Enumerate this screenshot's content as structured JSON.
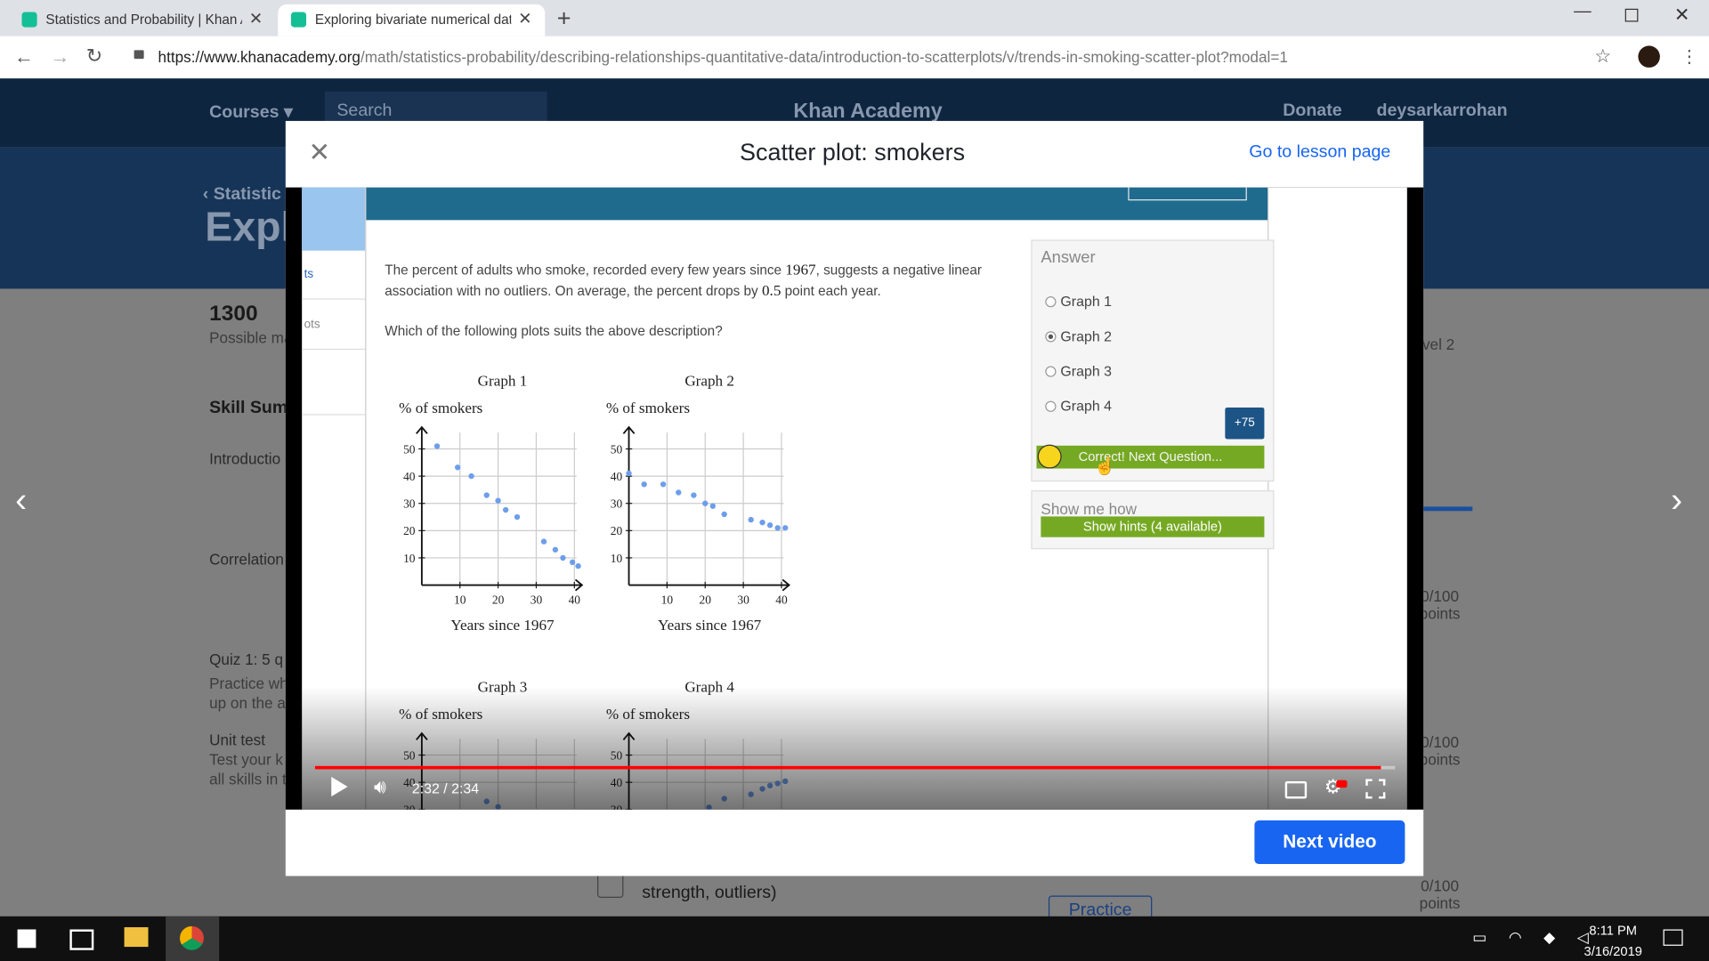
{
  "browser": {
    "tabs": [
      "Statistics and Probability | Khan A",
      "Exploring bivariate numerical dat"
    ],
    "url_host": "https://www.khanacademy.org",
    "url_path": "/math/statistics-probability/describing-relationships-quantitative-data/introduction-to-scatterplots/v/trends-in-smoking-scatter-plot?modal=1"
  },
  "background_page": {
    "nav": {
      "courses": "Courses",
      "search": "Search",
      "logo": "Khan Academy",
      "donate": "Donate",
      "user": "deysarkarrohan"
    },
    "breadcrumb": "Statistic",
    "title": "Expl",
    "points": "1300",
    "points_label": "Possible ma",
    "skill_heading": "Skill Summ",
    "sidebar": [
      "Introductio",
      "Correlation",
      "Quiz 1: 5 q",
      "Practice wh",
      "up on the a",
      "Unit test",
      "Test your k",
      "all skills in t"
    ],
    "level": "vel 2",
    "progress": [
      [
        "0/100",
        "points"
      ],
      [
        "0/100",
        "points"
      ],
      [
        "0/100",
        "points"
      ]
    ],
    "lesson_text": "strength, outliers)",
    "practice_button": "Practice"
  },
  "modal": {
    "title": "Scatter plot: smokers",
    "lesson_link": "Go to lesson page",
    "next_button": "Next video"
  },
  "video": {
    "sidebar_items": [
      "ts",
      "ots"
    ],
    "question": {
      "sentence_parts": [
        "The percent of adults who smoke, recorded every few years since ",
        "1967",
        ", suggests a negative linear association with no outliers. On average, the percent drops by ",
        "0.5",
        " point each year."
      ],
      "prompt": "Which of the following plots suits the above description?"
    },
    "graphs": [
      {
        "title": "Graph 1",
        "y_label": "% of smokers",
        "x_label": "Years since 1967",
        "color": "#6d9eeb",
        "x": [
          4,
          9.4,
          13,
          17,
          20,
          22,
          25,
          32,
          35,
          37,
          39.5,
          41
        ],
        "y": [
          51,
          43.2,
          40,
          33,
          31,
          27.6,
          25,
          16,
          13,
          10,
          8.4,
          7
        ],
        "xlim": [
          0,
          42
        ],
        "ylim": [
          0,
          58
        ],
        "xticks": [
          10,
          20,
          30,
          40
        ],
        "yticks": [
          10,
          20,
          30,
          40,
          50
        ]
      },
      {
        "title": "Graph 2",
        "y_label": "% of smokers",
        "x_label": "Years since 1967",
        "color": "#6d9eeb",
        "x": [
          0,
          4,
          9,
          13,
          17,
          20,
          22,
          25,
          32,
          35,
          37,
          39,
          41
        ],
        "y": [
          41,
          37,
          37,
          34,
          33,
          30,
          29,
          26,
          24,
          23,
          22,
          21,
          21
        ],
        "xlim": [
          0,
          42
        ],
        "ylim": [
          0,
          58
        ],
        "xticks": [
          10,
          20,
          30,
          40
        ],
        "yticks": [
          10,
          20,
          30,
          40,
          50
        ]
      },
      {
        "title": "Graph 3",
        "y_label": "% of smokers",
        "color": "#6d9eeb",
        "x": [
          17,
          20
        ],
        "y": [
          33,
          31
        ],
        "xlim": [
          0,
          42
        ],
        "ylim": [
          0,
          58
        ],
        "xticks": [
          10,
          20,
          30,
          40
        ],
        "yticks": [
          10,
          20,
          30,
          40,
          50
        ]
      },
      {
        "title": "Graph 4",
        "y_label": "% of smokers",
        "color": "#6d9eeb",
        "x": [
          21,
          25,
          32,
          35,
          37,
          39,
          41
        ],
        "y": [
          30.8,
          34,
          35.6,
          37.6,
          38.8,
          39.6,
          40.4
        ],
        "xlim": [
          0,
          42
        ],
        "ylim": [
          0,
          58
        ],
        "xticks": [
          10,
          20,
          30,
          40
        ],
        "yticks": [
          10,
          20,
          30,
          40,
          50
        ]
      }
    ],
    "answer": {
      "heading": "Answer",
      "options": [
        "Graph 1",
        "Graph 2",
        "Graph 3",
        "Graph 4"
      ],
      "selected": 1,
      "points_badge": "+75",
      "feedback": "Correct! Next Question...",
      "hint_heading": "Show me how",
      "hint_button": "Show hints (4 available)"
    },
    "time": "2:32 / 2:34"
  },
  "taskbar": {
    "time": "8:11 PM",
    "date": "3/16/2019"
  }
}
